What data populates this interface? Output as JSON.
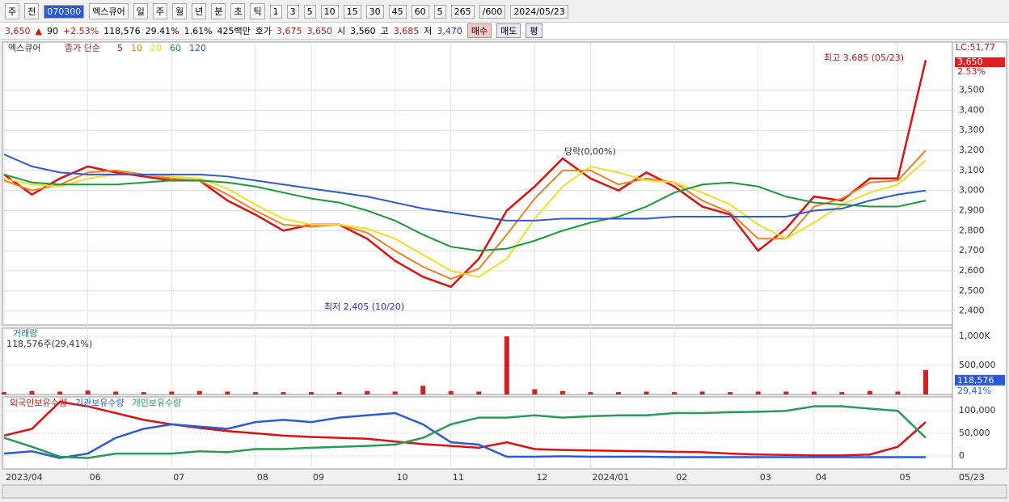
{
  "toolbar": {
    "items": [
      "주",
      "전",
      "070300",
      "엑스큐어",
      "일",
      "주",
      "월",
      "년",
      "분",
      "초",
      "틱",
      "1",
      "3",
      "5",
      "10",
      "15",
      "30",
      "45",
      "60",
      "5",
      "265",
      "/600",
      "2024/05/23"
    ]
  },
  "quote": {
    "items": [
      "3,650",
      "▲",
      "90",
      "+2.53%",
      "118,576",
      "29.41%",
      "1.61%",
      "425백만",
      "호가",
      "3,675",
      "3,650",
      "시",
      "3,560",
      "고",
      "3,685",
      "저",
      "3,470",
      "매수",
      "매도",
      "평"
    ]
  },
  "chart_data": [
    {
      "type": "line",
      "title": "엑스큐어",
      "legend_title": "종가 단순",
      "categories": [
        "2023/04",
        null,
        null,
        "06",
        null,
        null,
        "07",
        null,
        null,
        "08",
        null,
        "09",
        null,
        null,
        "10",
        null,
        "11",
        null,
        null,
        "12",
        null,
        "2024/01",
        null,
        null,
        "02",
        null,
        null,
        "03",
        null,
        "04",
        null,
        null,
        "05",
        null
      ],
      "series": [
        {
          "name": "5",
          "color": "#e01010",
          "values": [
            3080,
            2980,
            3060,
            3120,
            3090,
            3070,
            3050,
            3050,
            2950,
            2880,
            2800,
            2830,
            2830,
            2760,
            2650,
            2570,
            2520,
            2660,
            2900,
            3020,
            3160,
            3060,
            3000,
            3090,
            3020,
            2920,
            2880,
            2700,
            2810,
            2970,
            2950,
            3060,
            3060,
            3650
          ]
        },
        {
          "name": "10",
          "color": "#f08020",
          "values": [
            3050,
            3000,
            3030,
            3090,
            3100,
            3080,
            3060,
            3050,
            2980,
            2900,
            2830,
            2820,
            2830,
            2790,
            2700,
            2620,
            2560,
            2610,
            2780,
            2960,
            3100,
            3100,
            3030,
            3060,
            3040,
            2950,
            2890,
            2760,
            2760,
            2920,
            2960,
            3040,
            3050,
            3200
          ]
        },
        {
          "name": "20",
          "color": "#f0e020",
          "values": [
            3060,
            3030,
            3020,
            3060,
            3080,
            3080,
            3070,
            3060,
            3010,
            2930,
            2860,
            2830,
            2830,
            2810,
            2760,
            2680,
            2600,
            2570,
            2660,
            2860,
            3020,
            3120,
            3090,
            3050,
            3040,
            2990,
            2930,
            2830,
            2760,
            2840,
            2930,
            2990,
            3030,
            3150
          ]
        },
        {
          "name": "60",
          "color": "#1a9a3a",
          "values": [
            3080,
            3040,
            3030,
            3030,
            3030,
            3040,
            3050,
            3050,
            3040,
            3020,
            2990,
            2960,
            2940,
            2900,
            2850,
            2780,
            2720,
            2700,
            2710,
            2750,
            2800,
            2840,
            2870,
            2920,
            2990,
            3030,
            3040,
            3020,
            2970,
            2940,
            2930,
            2920,
            2920,
            2950
          ]
        },
        {
          "name": "120",
          "color": "#2a5ad8",
          "values": [
            3180,
            3120,
            3090,
            3080,
            3080,
            3080,
            3080,
            3080,
            3070,
            3050,
            3030,
            3010,
            2990,
            2970,
            2940,
            2910,
            2890,
            2870,
            2850,
            2850,
            2860,
            2860,
            2860,
            2860,
            2870,
            2870,
            2870,
            2870,
            2870,
            2900,
            2910,
            2950,
            2980,
            3000
          ]
        }
      ],
      "ylim": [
        2330,
        3740
      ],
      "yticks": [
        {
          "value": 2400,
          "label": "2,400"
        },
        {
          "value": 2500,
          "label": "2,500"
        },
        {
          "value": 2600,
          "label": "2,600"
        },
        {
          "value": 2700,
          "label": "2,700"
        },
        {
          "value": 2800,
          "label": "2,800"
        },
        {
          "value": 2900,
          "label": "2,900"
        },
        {
          "value": 3000,
          "label": "3,000"
        },
        {
          "value": 3100,
          "label": "3,100"
        },
        {
          "value": 3200,
          "label": "3,200"
        },
        {
          "value": 3300,
          "label": "3,300"
        },
        {
          "value": 3400,
          "label": "3,400"
        },
        {
          "value": 3500,
          "label": "3,500"
        }
      ],
      "grid": true,
      "annotations": [
        "최고 3,685 (05/23)",
        "최저 2,405 (10/20)",
        "당락(0,00%)"
      ],
      "right_labels": [
        "LC:51,77",
        "3,650",
        "2.53%"
      ]
    },
    {
      "type": "bar",
      "title": "거래량",
      "subtitle": "118,576주(29,41%)",
      "color": "#d02020",
      "values": [
        40000,
        60000,
        50000,
        70000,
        50000,
        40000,
        50000,
        60000,
        50000,
        40000,
        40000,
        40000,
        40000,
        60000,
        50000,
        150000,
        60000,
        50000,
        1000000,
        90000,
        60000,
        40000,
        40000,
        50000,
        40000,
        50000,
        40000,
        50000,
        50000,
        50000,
        40000,
        60000,
        50000,
        420000
      ],
      "ylim": [
        0,
        1140000
      ],
      "yticks": [
        {
          "value": 500000,
          "label": "500,000"
        },
        {
          "value": 1000000,
          "label": "1,000K"
        }
      ],
      "right_labels": [
        "118,576",
        "29,41%"
      ]
    },
    {
      "type": "line",
      "series": [
        {
          "name": "외국인보유수량",
          "color": "#e01010",
          "values": [
            45000,
            60000,
            120000,
            110000,
            95000,
            80000,
            70000,
            62000,
            55000,
            50000,
            45000,
            42000,
            40000,
            38000,
            32000,
            26000,
            22000,
            18000,
            30000,
            15000,
            13000,
            12000,
            11000,
            10000,
            9000,
            8000,
            5000,
            3000,
            2000,
            1000,
            1000,
            3000,
            20000,
            75000
          ]
        },
        {
          "name": "기관보유수량",
          "color": "#2a5ad8",
          "values": [
            5000,
            10000,
            -5000,
            5000,
            40000,
            60000,
            70000,
            65000,
            60000,
            75000,
            80000,
            75000,
            85000,
            90000,
            95000,
            70000,
            30000,
            25000,
            -2000,
            -2000,
            -1000,
            -2000,
            -2000,
            -2000,
            -3000,
            -3000,
            -3000,
            -3000,
            -3000,
            -3000,
            -3000,
            -3000,
            -3000,
            -3000
          ]
        },
        {
          "name": "개인보유수량",
          "color": "#2a9a5a",
          "values": [
            40000,
            20000,
            -2000,
            -5000,
            5000,
            5000,
            5000,
            10000,
            8000,
            15000,
            15000,
            18000,
            20000,
            22000,
            25000,
            40000,
            70000,
            85000,
            85000,
            90000,
            85000,
            88000,
            90000,
            90000,
            95000,
            95000,
            97000,
            98000,
            100000,
            110000,
            110000,
            105000,
            100000,
            40000
          ]
        }
      ],
      "ylim": [
        -29000,
        131000
      ],
      "yticks": [
        0,
        {
          "value": 50000,
          "label": "50,000"
        },
        {
          "value": 100000,
          "label": "100,000"
        }
      ],
      "end_label": "05/23"
    }
  ]
}
